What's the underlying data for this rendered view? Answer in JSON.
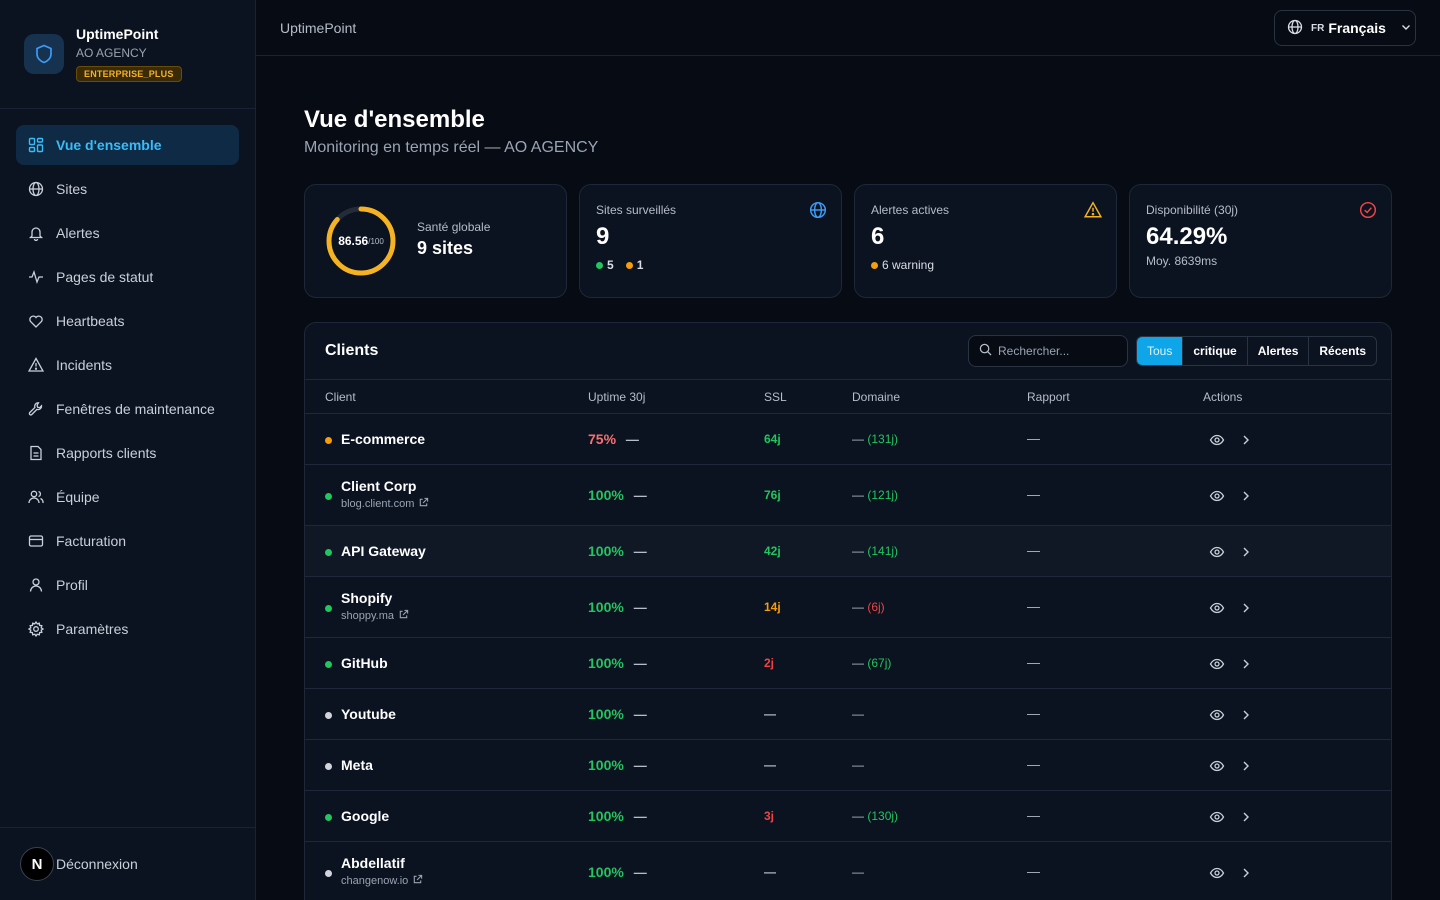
{
  "brand": {
    "name": "UptimePoint",
    "org": "AO AGENCY",
    "plan": "ENTERPRISE_PLUS"
  },
  "nav": [
    {
      "label": "Vue d'ensemble",
      "icon": "dashboard-icon",
      "active": true
    },
    {
      "label": "Sites",
      "icon": "globe-icon"
    },
    {
      "label": "Alertes",
      "icon": "bell-icon"
    },
    {
      "label": "Pages de statut",
      "icon": "activity-icon"
    },
    {
      "label": "Heartbeats",
      "icon": "heart-icon"
    },
    {
      "label": "Incidents",
      "icon": "warning-icon"
    },
    {
      "label": "Fenêtres de maintenance",
      "icon": "wrench-icon"
    },
    {
      "label": "Rapports clients",
      "icon": "document-icon"
    },
    {
      "label": "Équipe",
      "icon": "users-icon"
    },
    {
      "label": "Facturation",
      "icon": "credit-card-icon"
    },
    {
      "label": "Profil",
      "icon": "user-icon"
    },
    {
      "label": "Paramètres",
      "icon": "gear-icon"
    }
  ],
  "footer": {
    "avatar": "N",
    "logout": "Déconnexion"
  },
  "topbar": {
    "title": "UptimePoint",
    "lang_code": "FR",
    "lang_label": "Français"
  },
  "page": {
    "title": "Vue d'ensemble",
    "subtitle": "Monitoring en temps réel — AO AGENCY"
  },
  "cards": {
    "health": {
      "score": "86.56",
      "max": "/100",
      "score_fraction": 0.8656,
      "label": "Santé globale",
      "value": "9 sites"
    },
    "sites": {
      "label": "Sites surveillés",
      "value": "9",
      "up": "5",
      "warn": "1"
    },
    "alerts": {
      "label": "Alertes actives",
      "value": "6",
      "meta": "6 warning"
    },
    "uptime": {
      "label": "Disponibilité (30j)",
      "value": "64.29%",
      "meta": "Moy. 8639ms"
    }
  },
  "clients": {
    "title": "Clients",
    "search_placeholder": "Rechercher...",
    "filters": [
      "Tous",
      "critique",
      "Alertes",
      "Récents"
    ],
    "columns": [
      "Client",
      "Uptime 30j",
      "SSL",
      "Domaine",
      "Rapport",
      "Actions"
    ],
    "rows": [
      {
        "name": "E-commerce",
        "url": "",
        "status_color": "#f59e0b",
        "uptime": "75%",
        "uptime_color": "#f87171",
        "dash": "—",
        "ssl": "64j",
        "ssl_color": "#22c55e",
        "domain_prefix": "—",
        "domain": "(131j)",
        "domain_color": "#22c55e",
        "report": "—"
      },
      {
        "name": "Client Corp",
        "url": "blog.client.com",
        "status_color": "#22c55e",
        "uptime": "100%",
        "uptime_color": "#22c55e",
        "dash": "—",
        "ssl": "76j",
        "ssl_color": "#22c55e",
        "domain_prefix": "—",
        "domain": "(121j)",
        "domain_color": "#22c55e",
        "report": "—"
      },
      {
        "name": "API Gateway",
        "url": "",
        "status_color": "#22c55e",
        "uptime": "100%",
        "uptime_color": "#22c55e",
        "dash": "—",
        "ssl": "42j",
        "ssl_color": "#22c55e",
        "domain_prefix": "—",
        "domain": "(141j)",
        "domain_color": "#22c55e",
        "report": "—"
      },
      {
        "name": "Shopify",
        "url": "shoppy.ma",
        "status_color": "#22c55e",
        "uptime": "100%",
        "uptime_color": "#22c55e",
        "dash": "—",
        "ssl": "14j",
        "ssl_color": "#f59e0b",
        "domain_prefix": "—",
        "domain": "(6j)",
        "domain_color": "#ef4444",
        "report": "—"
      },
      {
        "name": "GitHub",
        "url": "",
        "status_color": "#22c55e",
        "uptime": "100%",
        "uptime_color": "#22c55e",
        "dash": "—",
        "ssl": "2j",
        "ssl_color": "#ef4444",
        "domain_prefix": "—",
        "domain": "(67j)",
        "domain_color": "#22c55e",
        "report": "—"
      },
      {
        "name": "Youtube",
        "url": "",
        "status_color": "#d1d5db",
        "uptime": "100%",
        "uptime_color": "#22c55e",
        "dash": "—",
        "ssl": "—",
        "ssl_color": "#b6bdc8",
        "domain_prefix": "—",
        "domain": "",
        "domain_color": "#b6bdc8",
        "report": "—"
      },
      {
        "name": "Meta",
        "url": "",
        "status_color": "#d1d5db",
        "uptime": "100%",
        "uptime_color": "#22c55e",
        "dash": "—",
        "ssl": "—",
        "ssl_color": "#b6bdc8",
        "domain_prefix": "—",
        "domain": "",
        "domain_color": "#b6bdc8",
        "report": "—"
      },
      {
        "name": "Google",
        "url": "",
        "status_color": "#22c55e",
        "uptime": "100%",
        "uptime_color": "#22c55e",
        "dash": "—",
        "ssl": "3j",
        "ssl_color": "#ef4444",
        "domain_prefix": "—",
        "domain": "(130j)",
        "domain_color": "#22c55e",
        "report": "—"
      },
      {
        "name": "Abdellatif",
        "url": "changenow.io",
        "status_color": "#d1d5db",
        "uptime": "100%",
        "uptime_color": "#22c55e",
        "dash": "—",
        "ssl": "—",
        "ssl_color": "#b6bdc8",
        "domain_prefix": "—",
        "domain": "",
        "domain_color": "#b6bdc8",
        "report": "—"
      }
    ]
  }
}
